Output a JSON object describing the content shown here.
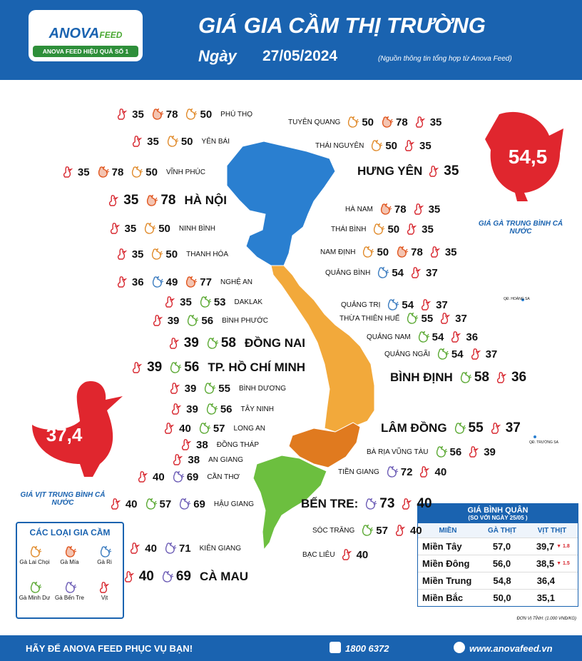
{
  "header": {
    "logo_name": "ANOVA",
    "logo_suffix": "FEED",
    "logo_slogan": "ANOVA FEED HIỆU QUẢ SỐ 1",
    "title": "GIÁ GIA CẦM THỊ TRƯỜNG",
    "date_label": "Ngày",
    "date": "27/05/2024",
    "source": "(Nguồn thông tin tổng hợp từ Anova Feed)"
  },
  "averages": {
    "chicken": {
      "value": "54,5",
      "label": "GIÁ GÀ TRUNG BÌNH CẢ NƯỚC"
    },
    "duck": {
      "value": "37,4",
      "label": "GIÁ VỊT TRUNG BÌNH CẢ NƯỚC"
    }
  },
  "legend": {
    "title": "CÁC LOẠI GIA CẦM",
    "items": [
      "Gà Lai Chọi",
      "Gà Mía",
      "Gà Ri",
      "Gà Minh Dư",
      "Gà Bến Tre",
      "Vịt"
    ]
  },
  "provinces": [
    {
      "name": "PHÚ THỌ",
      "prices": [
        {
          "icon": 5,
          "price": 35
        },
        {
          "icon": 1,
          "price": 78
        },
        {
          "icon": 0,
          "price": 50
        }
      ]
    },
    {
      "name": "YÊN BÁI",
      "prices": [
        {
          "icon": 5,
          "price": 35
        },
        {
          "icon": 0,
          "price": 50
        }
      ]
    },
    {
      "name": "VĨNH PHÚC",
      "prices": [
        {
          "icon": 5,
          "price": 35
        },
        {
          "icon": 1,
          "price": 78
        },
        {
          "icon": 0,
          "price": 50
        }
      ]
    },
    {
      "name": "HÀ NỘI",
      "prices": [
        {
          "icon": 5,
          "price": 35
        },
        {
          "icon": 1,
          "price": 78
        }
      ]
    },
    {
      "name": "NINH BÌNH",
      "prices": [
        {
          "icon": 5,
          "price": 35
        },
        {
          "icon": 0,
          "price": 50
        }
      ]
    },
    {
      "name": "THANH HÓA",
      "prices": [
        {
          "icon": 5,
          "price": 35
        },
        {
          "icon": 0,
          "price": 50
        }
      ]
    },
    {
      "name": "NGHỆ AN",
      "prices": [
        {
          "icon": 5,
          "price": 36
        },
        {
          "icon": 2,
          "price": 49
        },
        {
          "icon": 1,
          "price": 77
        }
      ]
    },
    {
      "name": "DAKLAK",
      "prices": [
        {
          "icon": 5,
          "price": 35
        },
        {
          "icon": 3,
          "price": 53
        }
      ]
    },
    {
      "name": "BÌNH PHƯỚC",
      "prices": [
        {
          "icon": 5,
          "price": 39
        },
        {
          "icon": 3,
          "price": 56
        }
      ]
    },
    {
      "name": "ĐỒNG NAI",
      "prices": [
        {
          "icon": 5,
          "price": 39
        },
        {
          "icon": 3,
          "price": 58
        }
      ]
    },
    {
      "name": "TP. HỒ CHÍ MINH",
      "prices": [
        {
          "icon": 5,
          "price": 39
        },
        {
          "icon": 3,
          "price": 56
        }
      ]
    },
    {
      "name": "BÌNH DƯƠNG",
      "prices": [
        {
          "icon": 5,
          "price": 39
        },
        {
          "icon": 3,
          "price": 55
        }
      ]
    },
    {
      "name": "TÂY NINH",
      "prices": [
        {
          "icon": 5,
          "price": 39
        },
        {
          "icon": 3,
          "price": 56
        }
      ]
    },
    {
      "name": "LONG AN",
      "prices": [
        {
          "icon": 5,
          "price": 40
        },
        {
          "icon": 3,
          "price": 57
        }
      ]
    },
    {
      "name": "ĐỒNG THÁP",
      "prices": [
        {
          "icon": 5,
          "price": 38
        }
      ]
    },
    {
      "name": "AN GIANG",
      "prices": [
        {
          "icon": 5,
          "price": 38
        }
      ]
    },
    {
      "name": "CẦN THƠ",
      "prices": [
        {
          "icon": 5,
          "price": 40
        },
        {
          "icon": 4,
          "price": 69
        }
      ]
    },
    {
      "name": "HẬU GIANG",
      "prices": [
        {
          "icon": 5,
          "price": 40
        },
        {
          "icon": 3,
          "price": 57
        },
        {
          "icon": 4,
          "price": 69
        }
      ]
    },
    {
      "name": "KIÊN GIANG",
      "prices": [
        {
          "icon": 5,
          "price": 40
        },
        {
          "icon": 4,
          "price": 71
        }
      ]
    },
    {
      "name": "CÀ MAU",
      "prices": [
        {
          "icon": 5,
          "price": 40
        },
        {
          "icon": 4,
          "price": 69
        }
      ]
    },
    {
      "name": "TUYÊN QUANG",
      "prices": [
        {
          "icon": 0,
          "price": 50
        },
        {
          "icon": 1,
          "price": 78
        },
        {
          "icon": 5,
          "price": 35
        }
      ]
    },
    {
      "name": "THÁI NGUYÊN",
      "prices": [
        {
          "icon": 0,
          "price": 50
        },
        {
          "icon": 5,
          "price": 35
        }
      ]
    },
    {
      "name": "HƯNG YÊN",
      "prices": [
        {
          "icon": 5,
          "price": 35
        }
      ]
    },
    {
      "name": "HÀ NAM",
      "prices": [
        {
          "icon": 1,
          "price": 78
        },
        {
          "icon": 5,
          "price": 35
        }
      ]
    },
    {
      "name": "THÁI BÌNH",
      "prices": [
        {
          "icon": 0,
          "price": 50
        },
        {
          "icon": 5,
          "price": 35
        }
      ]
    },
    {
      "name": "NAM ĐỊNH",
      "prices": [
        {
          "icon": 0,
          "price": 50
        },
        {
          "icon": 1,
          "price": 78
        },
        {
          "icon": 5,
          "price": 35
        }
      ]
    },
    {
      "name": "QUẢNG BÌNH",
      "prices": [
        {
          "icon": 2,
          "price": 54
        },
        {
          "icon": 5,
          "price": 37
        }
      ]
    },
    {
      "name": "QUẢNG TRỊ",
      "prices": [
        {
          "icon": 2,
          "price": 54
        },
        {
          "icon": 5,
          "price": 37
        }
      ]
    },
    {
      "name": "THỪA THIÊN HUẾ",
      "prices": [
        {
          "icon": 3,
          "price": 55
        },
        {
          "icon": 5,
          "price": 37
        }
      ]
    },
    {
      "name": "QUẢNG NAM",
      "prices": [
        {
          "icon": 3,
          "price": 54
        },
        {
          "icon": 5,
          "price": 36
        }
      ]
    },
    {
      "name": "QUẢNG NGÃI",
      "prices": [
        {
          "icon": 3,
          "price": 54
        },
        {
          "icon": 5,
          "price": 37
        }
      ]
    },
    {
      "name": "BÌNH ĐỊNH",
      "prices": [
        {
          "icon": 3,
          "price": 58
        },
        {
          "icon": 5,
          "price": 36
        }
      ]
    },
    {
      "name": "LÂM ĐỒNG",
      "prices": [
        {
          "icon": 3,
          "price": 55
        },
        {
          "icon": 5,
          "price": 37
        }
      ]
    },
    {
      "name": "BÀ RỊA VŨNG TÀU",
      "prices": [
        {
          "icon": 3,
          "price": 56
        },
        {
          "icon": 5,
          "price": 39
        }
      ]
    },
    {
      "name": "TIỀN GIANG",
      "prices": [
        {
          "icon": 4,
          "price": 72
        },
        {
          "icon": 5,
          "price": 40
        }
      ]
    },
    {
      "name": "BẾN TRE:",
      "prices": [
        {
          "icon": 4,
          "price": 73
        },
        {
          "icon": 5,
          "price": 40
        }
      ]
    },
    {
      "name": "SÓC TRĂNG",
      "prices": [
        {
          "icon": 3,
          "price": 57
        },
        {
          "icon": 5,
          "price": 40
        }
      ]
    },
    {
      "name": "BẠC LIÊU",
      "prices": [
        {
          "icon": 5,
          "price": 40
        }
      ]
    }
  ],
  "islands": [
    "QĐ. HOÀNG SA",
    "QĐ. TRƯỜNG SA"
  ],
  "table": {
    "title": "GIÁ BÌNH QUÂN",
    "subtitle": "(SO VỚI NGÀY 25/05 )",
    "headers": [
      "MIỀN",
      "GÀ THỊT",
      "VỊT THỊT"
    ],
    "rows": [
      [
        "Miền Tây",
        "57,0",
        "39,7",
        "▼ 1.8"
      ],
      [
        "Miền Đông",
        "56,0",
        "38,5",
        "▼ 1.5"
      ],
      [
        "Miền Trung",
        "54,8",
        "36,4"
      ],
      [
        "Miền Bắc",
        "50,0",
        "35,1"
      ]
    ],
    "unit": "ĐƠN VỊ TÍNH: (1.000 VNĐ/KG)"
  },
  "footer": {
    "slogan": "HÃY ĐỂ ANOVA FEED PHỤC VỤ BẠN!",
    "phone": "1800 6372",
    "website": "www.anovafeed.vn"
  }
}
